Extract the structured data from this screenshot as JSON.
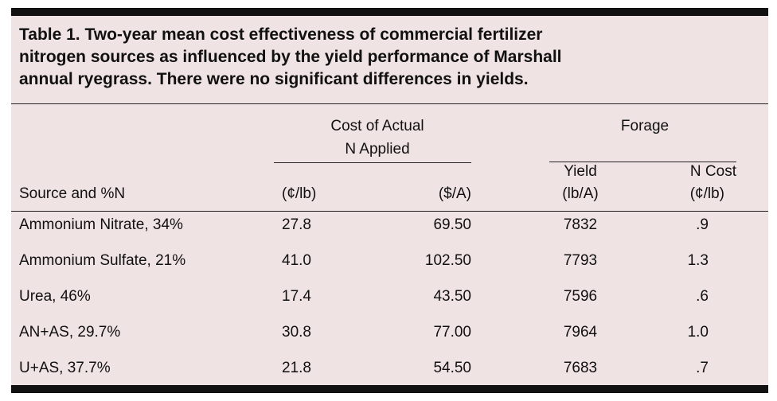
{
  "table": {
    "title_line1": "Table 1. Two-year mean cost effectiveness of commercial fertilizer",
    "title_line2": "nitrogen sources as influenced by the yield performance of Marshall",
    "title_line3": "annual ryegrass. There were no significant differences in yields.",
    "group_cost_line1": "Cost of Actual",
    "group_cost_line2": "N Applied",
    "group_forage": "Forage",
    "col_source": "Source and %N",
    "col_cost_lb": "(¢/lb)",
    "col_cost_a": "($/A)",
    "col_yield_line1": "Yield",
    "col_yield_line2": "(lb/A)",
    "col_ncost_line1": "N Cost",
    "col_ncost_line2": "(¢/lb)",
    "rows": [
      {
        "source": "Ammonium Nitrate, 34%",
        "cost_lb": "27.8",
        "cost_a": "69.50",
        "yield": "7832",
        "ncost": ".9"
      },
      {
        "source": "Ammonium Sulfate, 21%",
        "cost_lb": "41.0",
        "cost_a": "102.50",
        "yield": "7793",
        "ncost": "1.3"
      },
      {
        "source": "Urea, 46%",
        "cost_lb": "17.4",
        "cost_a": "43.50",
        "yield": "7596",
        "ncost": ".6"
      },
      {
        "source": "AN+AS, 29.7%",
        "cost_lb": "30.8",
        "cost_a": "77.00",
        "yield": "7964",
        "ncost": "1.0"
      },
      {
        "source": "U+AS, 37.7%",
        "cost_lb": "21.8",
        "cost_a": "54.50",
        "yield": "7683",
        "ncost": ".7"
      }
    ]
  }
}
